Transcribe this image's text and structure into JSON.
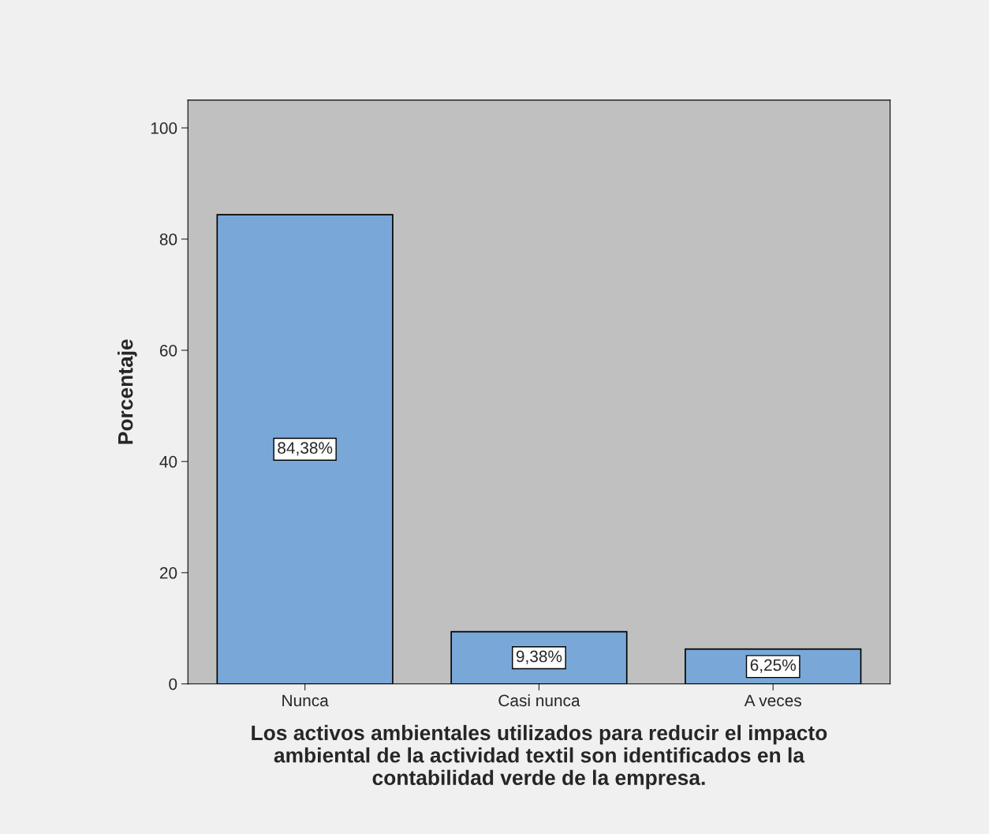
{
  "chart_data": {
    "type": "bar",
    "categories": [
      "Nunca",
      "Casi nunca",
      "A veces"
    ],
    "values": [
      84.38,
      9.38,
      6.25
    ],
    "value_labels": [
      "84,38%",
      "9,38%",
      "6,25%"
    ],
    "color": "#79a8d8",
    "xlabel": "Los activos ambientales utilizados para reducir el impacto\nambiental de la actividad textil son identificados en la\ncontabilidad verde de la empresa.",
    "ylabel": "Porcentaje",
    "ylim": [
      0,
      105
    ],
    "yticks": [
      0,
      20,
      40,
      60,
      80,
      100
    ],
    "grid": false
  }
}
